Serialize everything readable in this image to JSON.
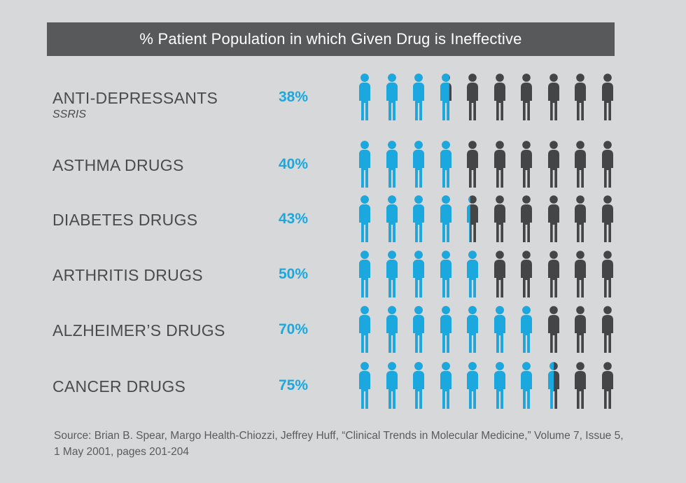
{
  "chart_data": {
    "type": "pictograph",
    "title": "% Patient Population in which Given Drug is Ineffective",
    "figures_per_row": 10,
    "colors": {
      "affected": "#1ba8df",
      "unaffected": "#444547"
    },
    "categories": [
      "ANTI-DEPRESSANTS",
      "ASTHMA DRUGS",
      "DIABETES DRUGS",
      "ARTHRITIS DRUGS",
      "ALZHEIMER’S DRUGS",
      "CANCER DRUGS"
    ],
    "rows": [
      {
        "label": "ANTI-DEPRESSANTS",
        "sublabel": "SSRIS",
        "value": 38,
        "value_label": "38%"
      },
      {
        "label": "ASTHMA DRUGS",
        "sublabel": "",
        "value": 40,
        "value_label": "40%"
      },
      {
        "label": "DIABETES DRUGS",
        "sublabel": "",
        "value": 43,
        "value_label": "43%"
      },
      {
        "label": "ARTHRITIS DRUGS",
        "sublabel": "",
        "value": 50,
        "value_label": "50%"
      },
      {
        "label": "ALZHEIMER’S DRUGS",
        "sublabel": "",
        "value": 70,
        "value_label": "70%"
      },
      {
        "label": "CANCER DRUGS",
        "sublabel": "",
        "value": 75,
        "value_label": "75%"
      }
    ],
    "source": "Source: Brian B. Spear, Margo Health-Chiozzi, Jeffrey Huff, “Clinical Trends in Molecular Medicine,” Volume 7, Issue 5, 1 May 2001, pages 201-204"
  }
}
